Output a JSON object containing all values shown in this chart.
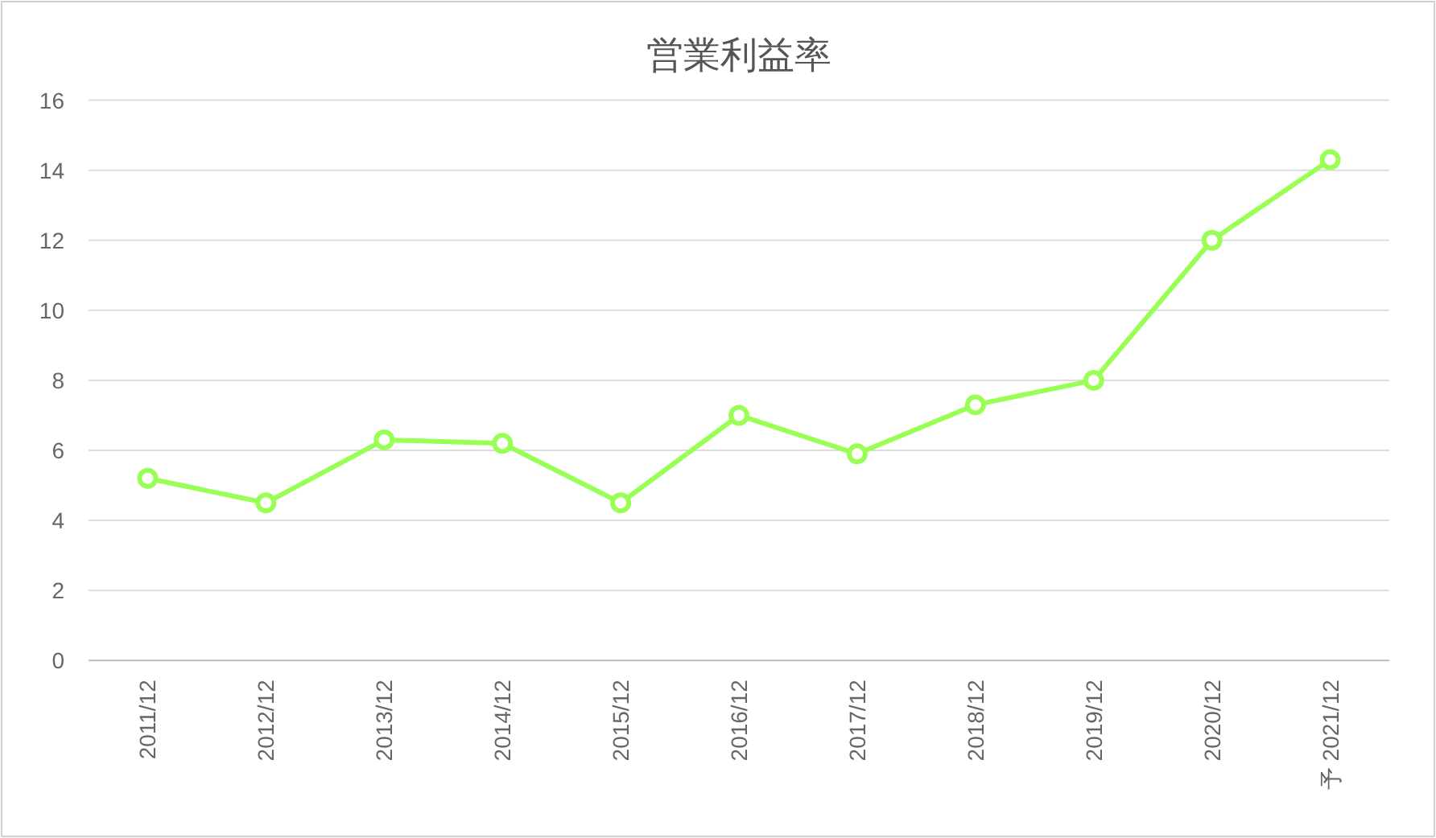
{
  "chart_data": {
    "type": "line",
    "title": "営業利益率",
    "categories": [
      "2011/12",
      "2012/12",
      "2013/12",
      "2014/12",
      "2015/12",
      "2016/12",
      "2017/12",
      "2018/12",
      "2019/12",
      "2020/12",
      "予 2021/12"
    ],
    "series": [
      {
        "color": "#99ff55",
        "values": [
          5.2,
          4.5,
          6.3,
          6.2,
          4.5,
          7.0,
          5.9,
          7.3,
          8.0,
          12.0,
          14.3
        ]
      }
    ],
    "ylim": [
      0,
      16
    ],
    "yticks": [
      0,
      2,
      4,
      6,
      8,
      10,
      12,
      14,
      16
    ],
    "grid": "y",
    "marker": "circle",
    "line_style": "solid"
  }
}
